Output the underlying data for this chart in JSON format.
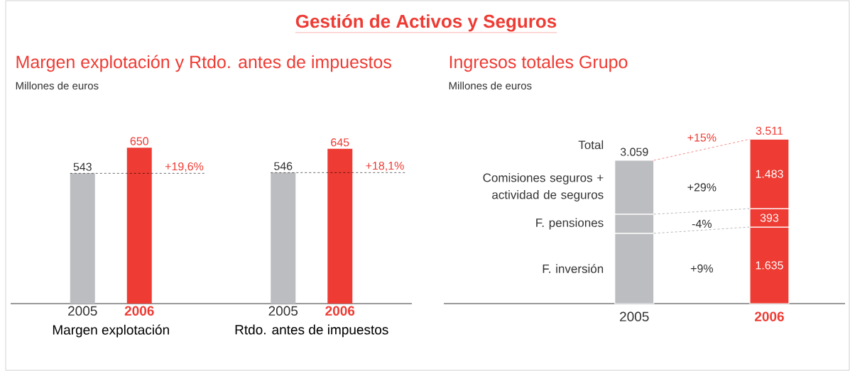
{
  "chart_data": [
    {
      "type": "bar",
      "title": "Margen explotación y Rtdo. antes de impuestos",
      "subtitle": "Millones de euros",
      "categories": [
        "Margen explotación",
        "Rtdo. antes de impuestos"
      ],
      "series": [
        {
          "name": "2005",
          "color": "#bcbdc0",
          "values": [
            543,
            546
          ]
        },
        {
          "name": "2006",
          "color": "#ee3b33",
          "values": [
            650,
            645
          ]
        }
      ],
      "data_labels": true,
      "annotations": [
        "Gestión de Activos y Seguros",
        "+19,6%",
        "+18,1%"
      ]
    },
    {
      "type": "bar",
      "stacked": true,
      "title": "Ingresos totales Grupo",
      "subtitle": "Millones de euros",
      "categories": [
        "2005",
        "2006"
      ],
      "series": [
        {
          "name": "F. inversión",
          "colors": [
            "#bcbdc0",
            "#ee3b33"
          ],
          "values": [
            1500,
            1635
          ],
          "value_labels": [
            null,
            "1.635"
          ]
        },
        {
          "name": "F. pensiones",
          "colors": [
            "#bcbdc0",
            "#ee3b33"
          ],
          "values": [
            409,
            393
          ],
          "value_labels": [
            null,
            "393"
          ]
        },
        {
          "name": "Comisiones seguros + actividad de seguros",
          "colors": [
            "#bcbdc0",
            "#ee3b33"
          ],
          "values": [
            1150,
            1483
          ],
          "value_labels": [
            null,
            "1.483"
          ]
        }
      ],
      "totals": [
        "3.059",
        "3.511"
      ],
      "annotations": [
        "Total",
        "+15%",
        "+9%",
        "-4%",
        "+29%"
      ]
    }
  ]
}
